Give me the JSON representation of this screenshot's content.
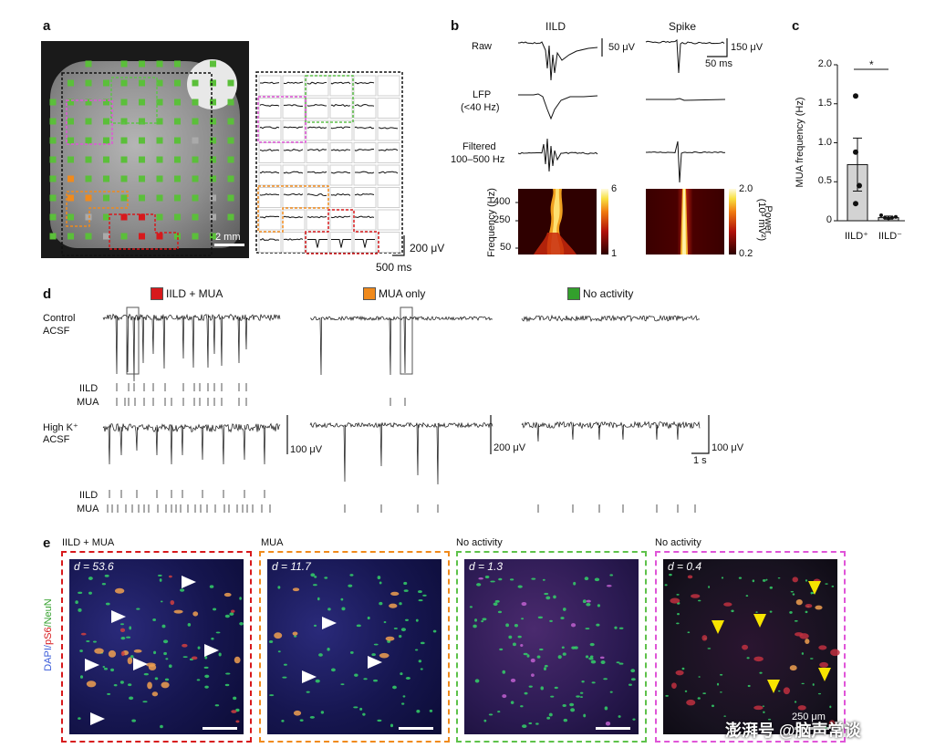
{
  "panels": {
    "a": {
      "label": "a",
      "scale_text": "2 mm",
      "scale_v": "200 μV",
      "scale_t": "500 ms"
    },
    "b": {
      "label": "b",
      "col_iild": "IILD",
      "col_spike": "Spike",
      "row_raw": "Raw",
      "row_lfp_1": "LFP",
      "row_lfp_2": "(<40 Hz)",
      "row_filt_1": "Filtered",
      "row_filt_2": "100–500 Hz",
      "scale_v1": "50 μV",
      "scale_v2": "150 μV",
      "scale_t": "50 ms",
      "freq_axis": "Frequency (Hz)",
      "freq_ticks": [
        "400",
        "250",
        "50"
      ],
      "cb1_ticks": [
        "6",
        "1"
      ],
      "cb2_ticks": [
        "2.0",
        "0.2"
      ],
      "power_label_1": "Power",
      "power_label_2": "(10³ mV²)"
    },
    "c": {
      "label": "c",
      "star": "*"
    },
    "d": {
      "label": "d",
      "legend": [
        {
          "label": "IILD + MUA",
          "color": "#d7191c"
        },
        {
          "label": "MUA only",
          "color": "#f08a1c"
        },
        {
          "label": "No activity",
          "color": "#33a02c"
        }
      ],
      "cond1_1": "Control",
      "cond1_2": "ACSF",
      "cond2_1": "High K⁺",
      "cond2_2": "ACSF",
      "iild": "IILD",
      "mua": "MUA",
      "scale_1": "100 μV",
      "scale_2": "200 μV",
      "scale_3": "100 μV",
      "scale_t": "1 s"
    },
    "e": {
      "label": "e",
      "titles": [
        "IILD + MUA",
        "MUA",
        "No activity",
        "No activity"
      ],
      "dvalues": [
        "d = 53.6",
        "d = 11.7",
        "d = 1.3",
        "d = 0.4"
      ],
      "stain_dapi": "DAPI/",
      "stain_ps6": "pS6",
      "stain_neun": "/NeuN",
      "scale_text": "250 μm",
      "watermark": "澎湃号 @脑声常谈"
    }
  },
  "chart_data": {
    "type": "bar",
    "categories": [
      "IILD⁺",
      "IILD⁻"
    ],
    "values": [
      0.72,
      0.04
    ],
    "errors": [
      0.34,
      0.02
    ],
    "points": [
      [
        1.6,
        0.88,
        0.45,
        0.22
      ],
      [
        0.07,
        0.04,
        0.03,
        0.04,
        0.05
      ]
    ],
    "ylabel": "MUA frequency (Hz)",
    "ylim": [
      0,
      2.0
    ],
    "yticks": [
      "0",
      "0.5",
      "1.0",
      "1.5",
      "2.0"
    ],
    "significance": "*"
  }
}
